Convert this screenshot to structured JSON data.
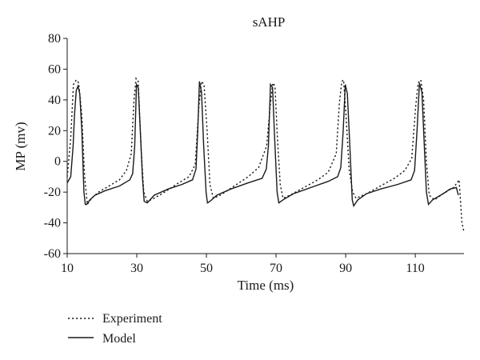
{
  "chart_data": {
    "type": "line",
    "title": "sAHP",
    "xlabel": "Time (ms)",
    "ylabel": "MP (mv)",
    "xlim": [
      10,
      124
    ],
    "ylim": [
      -60,
      80
    ],
    "x_ticks": [
      10,
      30,
      50,
      70,
      90,
      110
    ],
    "y_ticks": [
      -60,
      -40,
      -20,
      0,
      20,
      40,
      60,
      80
    ],
    "grid": false,
    "legend": "bottom-left",
    "series": [
      {
        "name": "Experiment",
        "style": "dotted",
        "color": "#1a1a1a",
        "x": [
          10,
          11,
          11.8,
          12.6,
          13.3,
          14.2,
          15,
          15.8,
          17,
          19,
          22,
          25,
          27,
          28.4,
          29.2,
          29.8,
          30.4,
          31.2,
          32,
          33,
          35,
          38,
          42,
          45,
          46.8,
          47.8,
          48.6,
          49.3,
          50.2,
          51,
          52,
          54,
          58,
          62,
          65,
          67.3,
          68.4,
          69.1,
          69.7,
          70.4,
          71.2,
          72,
          74,
          78,
          82,
          85,
          87.3,
          88.2,
          88.9,
          89.4,
          90.1,
          91,
          92,
          93,
          96,
          100,
          104,
          107,
          109,
          110.1,
          110.8,
          111.6,
          112.4,
          113.2,
          114,
          115.5,
          118,
          121,
          122,
          122.6,
          123.4,
          124
        ],
        "y": [
          -10,
          15,
          50,
          53,
          51,
          30,
          -10,
          -28,
          -24,
          -20,
          -16,
          -12,
          -6,
          5,
          40,
          54,
          52,
          10,
          -20,
          -26,
          -24,
          -20,
          -14,
          -10,
          -2,
          35,
          52,
          50,
          20,
          -15,
          -24,
          -22,
          -16,
          -10,
          -4,
          10,
          38,
          51,
          49,
          15,
          -15,
          -24,
          -22,
          -17,
          -12,
          -7,
          5,
          38,
          52,
          53,
          30,
          -5,
          -20,
          -24,
          -21,
          -16,
          -11,
          -6,
          2,
          35,
          51,
          53,
          40,
          0,
          -22,
          -25,
          -21,
          -17,
          -14,
          -12,
          -40,
          -46
        ]
      },
      {
        "name": "Model",
        "style": "solid",
        "color": "#1a1a1a",
        "x": [
          10,
          11,
          11.7,
          12.1,
          12.6,
          13.1,
          13.6,
          14.2,
          14.8,
          15.2,
          15.6,
          16.5,
          18,
          21,
          25,
          28,
          28.8,
          29.4,
          29.9,
          30.4,
          31,
          31.6,
          32.1,
          33,
          35,
          39,
          43,
          46,
          47,
          47.5,
          48,
          48.6,
          49.2,
          49.9,
          50.3,
          51,
          53,
          57,
          62,
          66,
          67.2,
          67.8,
          68.4,
          69,
          69.6,
          70.3,
          70.8,
          72,
          75,
          80,
          85,
          87.7,
          88.6,
          89.3,
          89.9,
          90.5,
          91.2,
          91.9,
          92.3,
          93.5,
          96,
          100,
          105,
          108.8,
          109.8,
          110.5,
          111.2,
          111.9,
          112.6,
          113.2,
          113.8,
          115,
          118,
          120,
          121.8,
          122.4
        ],
        "y": [
          -14,
          -10,
          10,
          30,
          46,
          49,
          44,
          20,
          -20,
          -28,
          -28,
          -25,
          -22,
          -19,
          -16,
          -12,
          -8,
          10,
          50,
          48,
          20,
          -10,
          -26,
          -27,
          -22,
          -18,
          -15,
          -12,
          -5,
          20,
          52,
          45,
          10,
          -20,
          -27,
          -26,
          -22,
          -18,
          -14,
          -11,
          -5,
          10,
          50,
          48,
          15,
          -20,
          -27,
          -25,
          -21,
          -17,
          -13,
          -10,
          -4,
          20,
          50,
          44,
          10,
          -25,
          -29,
          -25,
          -21,
          -18,
          -15,
          -12,
          -6,
          20,
          51,
          45,
          10,
          -20,
          -28,
          -25,
          -21,
          -18,
          -17,
          -22
        ]
      }
    ]
  }
}
